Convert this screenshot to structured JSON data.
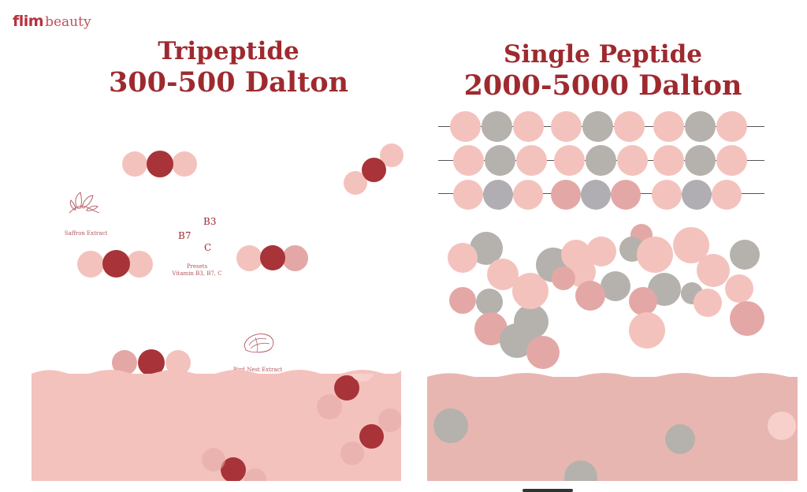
{
  "brand": {
    "name": "flim",
    "suffix": "beauty"
  },
  "left": {
    "title": "Tripeptide",
    "subtitle": "300-500 Dalton",
    "labels": {
      "saffron": "Saffron Extract",
      "bird_nest": "Bird Nest Extract",
      "vitamin_b3": "B3",
      "vitamin_b7": "B7",
      "vitamin_c": "C",
      "presets_line1": "Presets",
      "presets_line2": "Vitamin B3, B7, C"
    }
  },
  "right": {
    "title": "Single Peptide",
    "subtitle": "2000-5000 Dalton"
  },
  "colors": {
    "accent": "#9e2a2f",
    "dark_peptide": "#a83338",
    "light_peptide": "#f4c2bd",
    "grey_peptide": "#b5b2ad",
    "skin": "#f4c2bd"
  }
}
